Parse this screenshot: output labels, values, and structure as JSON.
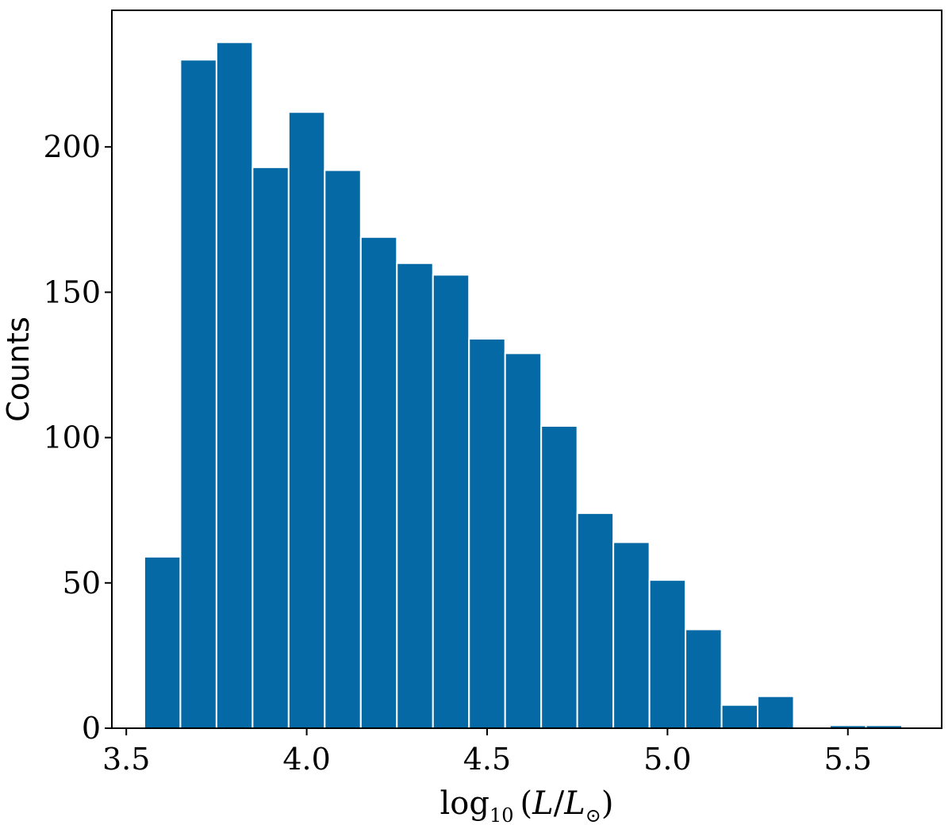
{
  "chart_data": {
    "type": "bar",
    "title": "",
    "ylabel": "Counts",
    "xlabel": {
      "func": "log",
      "sub": "10",
      "arg_open": "(",
      "L": "L",
      "slash": "/",
      "Lsun": "L",
      "sun_sub": "⊙",
      "arg_close": ")"
    },
    "bar_color": "#0569a5",
    "bar_edge_color": "#ffffff",
    "xlim": [
      3.46,
      5.76
    ],
    "ylim": [
      0,
      247
    ],
    "bin_width": 0.1,
    "bins": [
      {
        "x0": 3.55,
        "x1": 3.65,
        "count": 59
      },
      {
        "x0": 3.65,
        "x1": 3.75,
        "count": 230
      },
      {
        "x0": 3.75,
        "x1": 3.85,
        "count": 236
      },
      {
        "x0": 3.85,
        "x1": 3.95,
        "count": 193
      },
      {
        "x0": 3.95,
        "x1": 4.05,
        "count": 212
      },
      {
        "x0": 4.05,
        "x1": 4.15,
        "count": 192
      },
      {
        "x0": 4.15,
        "x1": 4.25,
        "count": 169
      },
      {
        "x0": 4.25,
        "x1": 4.35,
        "count": 160
      },
      {
        "x0": 4.35,
        "x1": 4.45,
        "count": 156
      },
      {
        "x0": 4.45,
        "x1": 4.55,
        "count": 134
      },
      {
        "x0": 4.55,
        "x1": 4.65,
        "count": 129
      },
      {
        "x0": 4.65,
        "x1": 4.75,
        "count": 104
      },
      {
        "x0": 4.75,
        "x1": 4.85,
        "count": 74
      },
      {
        "x0": 4.85,
        "x1": 4.95,
        "count": 64
      },
      {
        "x0": 4.95,
        "x1": 5.05,
        "count": 51
      },
      {
        "x0": 5.05,
        "x1": 5.15,
        "count": 34
      },
      {
        "x0": 5.15,
        "x1": 5.25,
        "count": 8
      },
      {
        "x0": 5.25,
        "x1": 5.35,
        "count": 11
      },
      {
        "x0": 5.35,
        "x1": 5.45,
        "count": 0
      },
      {
        "x0": 5.45,
        "x1": 5.55,
        "count": 1
      },
      {
        "x0": 5.55,
        "x1": 5.65,
        "count": 1
      }
    ],
    "xticks": [
      {
        "value": 3.5,
        "label": "3.5"
      },
      {
        "value": 4.0,
        "label": "4.0"
      },
      {
        "value": 4.5,
        "label": "4.5"
      },
      {
        "value": 5.0,
        "label": "5.0"
      },
      {
        "value": 5.5,
        "label": "5.5"
      }
    ],
    "yticks": [
      {
        "value": 0,
        "label": "0"
      },
      {
        "value": 50,
        "label": "50"
      },
      {
        "value": 100,
        "label": "100"
      },
      {
        "value": 150,
        "label": "150"
      },
      {
        "value": 200,
        "label": "200"
      }
    ],
    "grid": false,
    "legend": "none"
  }
}
